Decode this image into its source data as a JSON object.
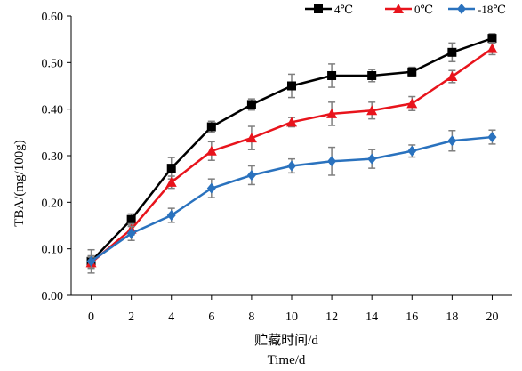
{
  "chart_data": {
    "type": "line",
    "title": "",
    "xlabel": "贮藏时间/d",
    "xlabel_en": "Time/d",
    "ylabel": "TBA/(mg/100g)",
    "x": [
      0,
      2,
      4,
      6,
      8,
      10,
      12,
      14,
      16,
      18,
      20
    ],
    "x_tick_labels": [
      "0",
      "2",
      "4",
      "6",
      "8",
      "10",
      "12",
      "14",
      "16",
      "18",
      "20"
    ],
    "xlim": [
      -1,
      21
    ],
    "ylim": [
      0,
      0.6
    ],
    "y_ticks": [
      0,
      0.1,
      0.2,
      0.3,
      0.4,
      0.5,
      0.6
    ],
    "y_tick_labels": [
      "0.00",
      "0.10",
      "0.20",
      "0.30",
      "0.40",
      "0.50",
      "0.60"
    ],
    "grid": false,
    "legend_position": "top-right",
    "error_bar_color": "#7f7f7f",
    "series": [
      {
        "name": "4℃",
        "color": "#000000",
        "marker": "square",
        "values": [
          0.073,
          0.163,
          0.273,
          0.362,
          0.41,
          0.45,
          0.472,
          0.472,
          0.48,
          0.522,
          0.552
        ],
        "errors": [
          0.012,
          0.012,
          0.023,
          0.012,
          0.012,
          0.025,
          0.025,
          0.013,
          0.01,
          0.02,
          0.01
        ]
      },
      {
        "name": "0℃",
        "color": "#e8141c",
        "marker": "triangle",
        "values": [
          0.07,
          0.142,
          0.243,
          0.31,
          0.338,
          0.372,
          0.39,
          0.397,
          0.412,
          0.47,
          0.53
        ],
        "errors": [
          0.012,
          0.012,
          0.013,
          0.02,
          0.025,
          0.01,
          0.025,
          0.018,
          0.015,
          0.013,
          0.013
        ]
      },
      {
        "name": "-18℃",
        "color": "#2a72be",
        "marker": "diamond",
        "values": [
          0.073,
          0.133,
          0.172,
          0.23,
          0.258,
          0.278,
          0.288,
          0.293,
          0.31,
          0.332,
          0.34
        ],
        "errors": [
          0.025,
          0.015,
          0.015,
          0.02,
          0.02,
          0.015,
          0.03,
          0.02,
          0.013,
          0.022,
          0.015
        ]
      }
    ]
  }
}
